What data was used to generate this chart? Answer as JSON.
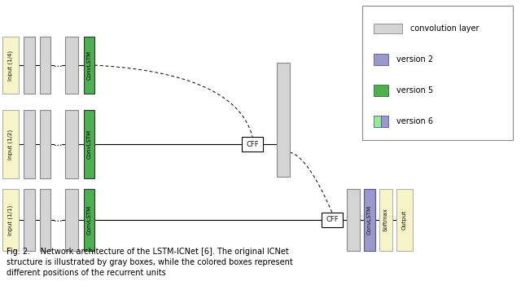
{
  "fig_width": 6.4,
  "fig_height": 3.72,
  "dpi": 100,
  "bg_color": "#ffffff",
  "colors": {
    "gray_box": "#c8c8c8",
    "gray_box_light": "#d4d4d4",
    "green_box": "#4caf50",
    "green_bright": "#90ee90",
    "blue_box": "#9999cc",
    "yellow_box": "#f5f5c8",
    "white": "#ffffff",
    "black": "#000000"
  },
  "caption_line1": "Fig. 2.    Network architecture of the LSTM-ICNet [6]. The original ICNet",
  "caption_line2": "structure is illustrated by gray boxes, while the colored boxes represent",
  "caption_line3": "different positions of the recurrent units",
  "input_labels": [
    "Input (1/4)",
    "Input (1/2)",
    "Input (1/1)"
  ]
}
